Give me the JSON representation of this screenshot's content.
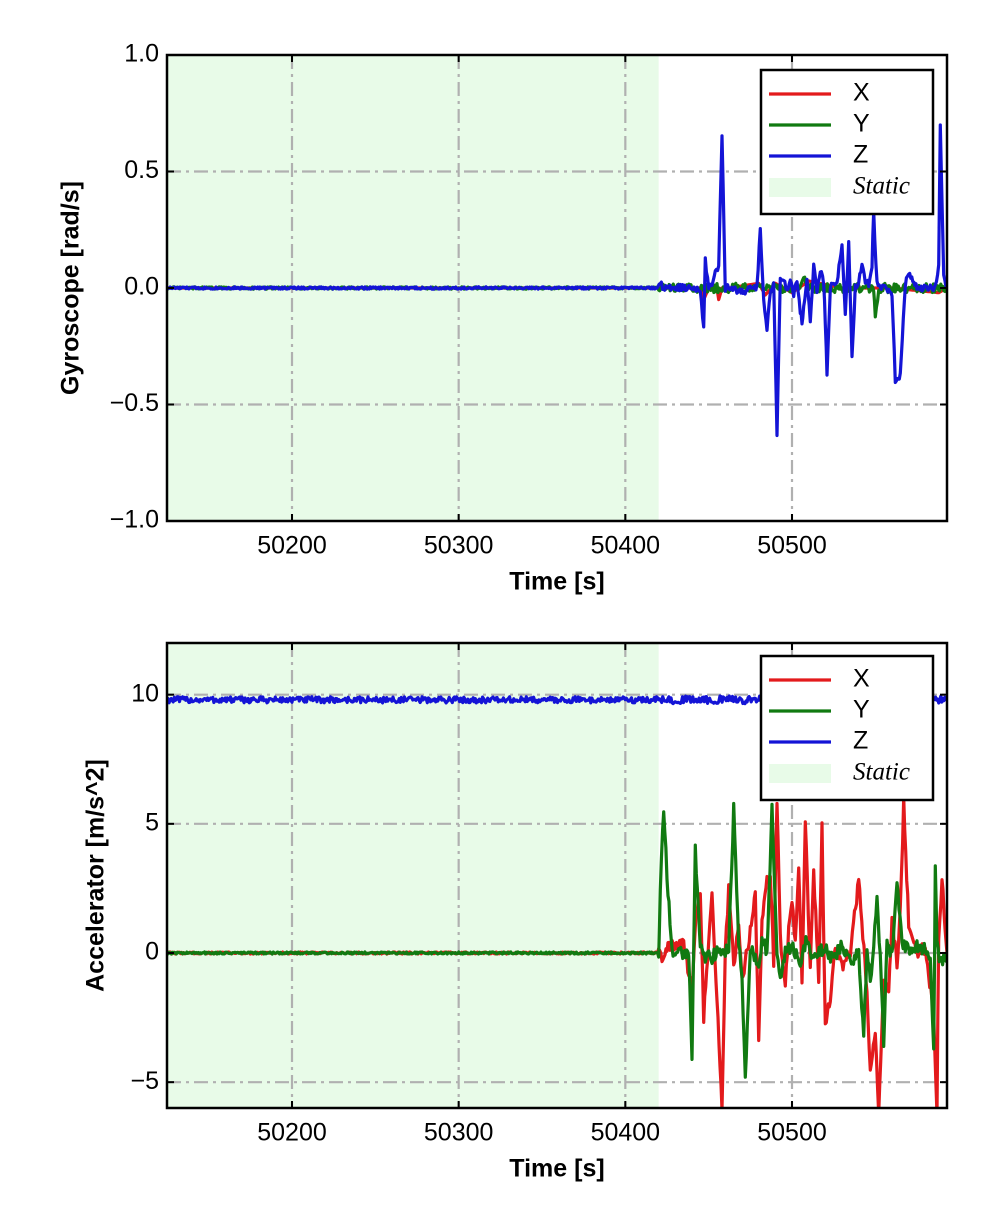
{
  "colors": {
    "x": "#e31a1c",
    "y": "#117a11",
    "z": "#1414d6",
    "static_fill": "#e8fbe8",
    "grid": "#b0b0b0"
  },
  "chart_data": [
    {
      "type": "line",
      "xlabel": "Time [s]",
      "ylabel": "Gyroscope [rad/s]",
      "xlim": [
        50125,
        50593
      ],
      "ylim": [
        -1.0,
        1.0
      ],
      "xticks": [
        50200,
        50300,
        50400,
        50500
      ],
      "xtick_labels": [
        "50200",
        "50300",
        "50400",
        "50500"
      ],
      "yticks": [
        -1.0,
        -0.5,
        0.0,
        0.5,
        1.0
      ],
      "ytick_labels": [
        "−1.0",
        "−0.5",
        "0.0",
        "0.5",
        "1.0"
      ],
      "grid": true,
      "legend_position": "top-right",
      "static_region": [
        50125,
        50420
      ],
      "legend": [
        "X",
        "Y",
        "Z",
        "Static"
      ],
      "series": [
        {
          "name": "X",
          "x": [
            50125,
            50420,
            50445,
            50447,
            50450,
            50455,
            50456,
            50458,
            50462,
            50480,
            50484,
            50490,
            50500,
            50510,
            50530,
            50560,
            50588,
            50593
          ],
          "y": [
            0,
            0,
            0,
            -0.05,
            0,
            0,
            -0.05,
            0,
            0,
            0.02,
            -0.03,
            0.02,
            -0.02,
            0.03,
            0,
            0,
            -0.02,
            0
          ]
        },
        {
          "name": "Y",
          "x": [
            50125,
            50420,
            50445,
            50455,
            50470,
            50500,
            50505,
            50507,
            50510,
            50540,
            50549,
            50550,
            50552,
            50570,
            50593
          ],
          "y": [
            0,
            0,
            0,
            0,
            0,
            0,
            0,
            0.05,
            0,
            0,
            0,
            -0.13,
            0,
            0,
            0
          ],
          "noise": [
            0.005,
            0.02
          ]
        },
        {
          "name": "Z",
          "x": [
            50125,
            50419,
            50421,
            50423,
            50445,
            50447,
            50448,
            50450,
            50452,
            50456,
            50458,
            50460,
            50462,
            50470,
            50475,
            50479,
            50481,
            50483,
            50485,
            50487,
            50489,
            50491,
            50493,
            50495,
            50497,
            50499,
            50501,
            50503,
            50505,
            50506,
            50507,
            50509,
            50511,
            50513,
            50515,
            50517,
            50519,
            50520,
            50521,
            50523,
            50525,
            50527,
            50530,
            50532,
            50534,
            50536,
            50538,
            50540,
            50542,
            50544,
            50546,
            50548,
            50549,
            50551,
            50553,
            50555,
            50560,
            50562,
            50565,
            50568,
            50570,
            50575,
            50580,
            50586,
            50588,
            50589,
            50591,
            50593
          ],
          "y": [
            0,
            0,
            0.02,
            0,
            0,
            -0.17,
            0.12,
            0,
            0.02,
            0.1,
            0.65,
            0,
            0,
            -0.02,
            0,
            0,
            0.26,
            -0.05,
            -0.18,
            -0.02,
            0.02,
            -0.62,
            0.05,
            0.04,
            -0.02,
            0.04,
            -0.03,
            0.04,
            -0.1,
            -0.15,
            -0.09,
            0.04,
            -0.14,
            0.09,
            -0.02,
            0.08,
            0.02,
            -0.15,
            -0.38,
            0.0,
            0.02,
            0.02,
            0.19,
            -0.12,
            0.2,
            -0.3,
            0.01,
            0.02,
            0.11,
            0.02,
            0.02,
            0.1,
            0.32,
            0.02,
            0.01,
            0.0,
            -0.02,
            -0.4,
            -0.38,
            0.02,
            0.06,
            0.0,
            0.0,
            0.0,
            0.1,
            0.7,
            0.05,
            0.0
          ],
          "noise": [
            0.005,
            0.015
          ]
        }
      ]
    },
    {
      "type": "line",
      "xlabel": "Time [s]",
      "ylabel": "Accelerator [m/s^2]",
      "xlim": [
        50125,
        50593
      ],
      "ylim": [
        -6.0,
        12.0
      ],
      "xticks": [
        50200,
        50300,
        50400,
        50500
      ],
      "xtick_labels": [
        "50200",
        "50300",
        "50400",
        "50500"
      ],
      "yticks": [
        -5,
        0,
        5,
        10
      ],
      "ytick_labels": [
        "−5",
        "0",
        "5",
        "10"
      ],
      "grid": true,
      "legend_position": "top-right",
      "static_region": [
        50125,
        50420
      ],
      "legend": [
        "X",
        "Y",
        "Z",
        "Static"
      ],
      "series": [
        {
          "name": "Z",
          "x": [
            50125,
            50593
          ],
          "y": [
            9.8,
            9.8
          ],
          "noise": [
            0.12,
            0.15
          ]
        },
        {
          "name": "X",
          "x": [
            50125,
            50420,
            50422,
            50425,
            50435,
            50440,
            50442,
            50445,
            50447,
            50450,
            50452,
            50455,
            50458,
            50460,
            50462,
            50465,
            50468,
            50470,
            50475,
            50478,
            50480,
            50482,
            50485,
            50487,
            50489,
            50491,
            50493,
            50496,
            50498,
            50500,
            50502,
            50504,
            50506,
            50508,
            50511,
            50513,
            50516,
            50518,
            50520,
            50523,
            50526,
            50530,
            50535,
            50540,
            50545,
            50547,
            50550,
            50552,
            50555,
            50558,
            50560,
            50563,
            50565,
            50567,
            50570,
            50575,
            50580,
            50582,
            50585,
            50587,
            50588,
            50590,
            50593
          ],
          "y": [
            0,
            0,
            -0.3,
            0.2,
            0.3,
            -1.5,
            1.2,
            2.4,
            -2.5,
            0.4,
            2.5,
            -1.8,
            -6,
            0.2,
            2.5,
            -0.5,
            1.2,
            -1.0,
            0.8,
            2.5,
            -3.5,
            1.4,
            2.8,
            3.2,
            -0.4,
            6.0,
            0.5,
            -1.5,
            1.0,
            2.2,
            0.3,
            3.5,
            -1.2,
            5.0,
            -0.5,
            3.2,
            -1.1,
            4.8,
            -2.8,
            -1.8,
            0.3,
            -0.6,
            0.1,
            2.8,
            -1.5,
            -4.5,
            -3.2,
            -6.0,
            -1.2,
            -1.5,
            1.3,
            -0.5,
            1.8,
            5.8,
            1.2,
            0.0,
            0.2,
            -0.8,
            -2.5,
            -6.0,
            0.5,
            3.0,
            0.0
          ],
          "noise": [
            0.04,
            0.25
          ]
        },
        {
          "name": "Y",
          "x": [
            50125,
            50420,
            50421,
            50423,
            50425,
            50428,
            50432,
            50435,
            50438,
            50440,
            50442,
            50445,
            50448,
            50450,
            50452,
            50455,
            50458,
            50462,
            50465,
            50468,
            50470,
            50472,
            50475,
            50478,
            50480,
            50482,
            50485,
            50488,
            50491,
            50493,
            50496,
            50500,
            50505,
            50507,
            50509,
            50511,
            50515,
            50520,
            50525,
            50530,
            50535,
            50540,
            50543,
            50545,
            50547,
            50549,
            50551,
            50553,
            50555,
            50557,
            50560,
            50563,
            50566,
            50570,
            50575,
            50580,
            50583,
            50585,
            50586,
            50587,
            50589,
            50593
          ],
          "y": [
            0,
            0,
            2.5,
            5.6,
            3.0,
            0.0,
            0.1,
            0.0,
            0.1,
            -4.0,
            4.0,
            0.3,
            -0.2,
            0.0,
            -0.2,
            0.1,
            0.0,
            0.2,
            5.6,
            0.5,
            -1.0,
            -5.0,
            0.2,
            -0.2,
            -0.3,
            0.5,
            0.1,
            5.6,
            0.0,
            -1.0,
            0.0,
            0.3,
            -0.4,
            0.2,
            0.6,
            -0.2,
            0.0,
            0.2,
            -0.3,
            0.4,
            -0.4,
            0.0,
            -3.2,
            0.2,
            -1.0,
            0.2,
            2.3,
            -0.2,
            -3.5,
            0.3,
            0.0,
            2.6,
            0.4,
            0.1,
            0.3,
            0.1,
            -0.2,
            -3.8,
            3.3,
            0.4,
            -0.5,
            0.0
          ],
          "noise": [
            0.04,
            0.25
          ]
        }
      ]
    }
  ]
}
